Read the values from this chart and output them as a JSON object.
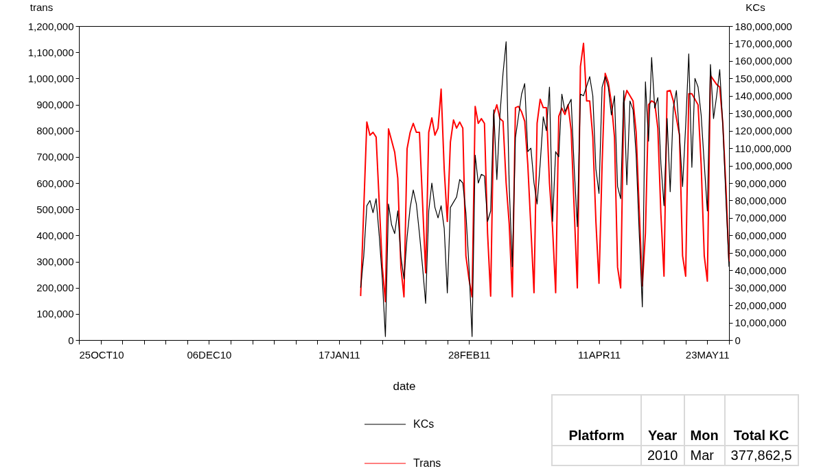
{
  "chart_data": {
    "type": "line",
    "xlabel": "date",
    "ylabel": "trans",
    "y2label": "KCs",
    "legend": "bottom",
    "line_style": "solid",
    "xlim": [
      "2010-10-25",
      "2011-05-23"
    ],
    "xticks": [
      {
        "value": "2010-10-25",
        "label": "25OCT10"
      },
      {
        "value": "2010-11-01",
        "label": null
      },
      {
        "value": "2010-11-08",
        "label": null
      },
      {
        "value": "2010-11-15",
        "label": null
      },
      {
        "value": "2010-11-22",
        "label": null
      },
      {
        "value": "2010-11-29",
        "label": null
      },
      {
        "value": "2010-12-06",
        "label": "06DEC10"
      },
      {
        "value": "2010-12-13",
        "label": null
      },
      {
        "value": "2010-12-20",
        "label": null
      },
      {
        "value": "2010-12-27",
        "label": null
      },
      {
        "value": "2011-01-03",
        "label": null
      },
      {
        "value": "2011-01-10",
        "label": null
      },
      {
        "value": "2011-01-17",
        "label": "17JAN11"
      },
      {
        "value": "2011-01-24",
        "label": null
      },
      {
        "value": "2011-01-31",
        "label": null
      },
      {
        "value": "2011-02-07",
        "label": null
      },
      {
        "value": "2011-02-14",
        "label": null
      },
      {
        "value": "2011-02-21",
        "label": null
      },
      {
        "value": "2011-02-28",
        "label": "28FEB11"
      },
      {
        "value": "2011-03-07",
        "label": null
      },
      {
        "value": "2011-03-14",
        "label": null
      },
      {
        "value": "2011-03-21",
        "label": null
      },
      {
        "value": "2011-03-28",
        "label": null
      },
      {
        "value": "2011-04-04",
        "label": null
      },
      {
        "value": "2011-04-11",
        "label": "11APR11"
      },
      {
        "value": "2011-04-18",
        "label": null
      },
      {
        "value": "2011-04-25",
        "label": null
      },
      {
        "value": "2011-05-02",
        "label": null
      },
      {
        "value": "2011-05-09",
        "label": null
      },
      {
        "value": "2011-05-16",
        "label": null
      },
      {
        "value": "2011-05-23",
        "label": "23MAY11"
      }
    ],
    "ylim": [
      0,
      1200000
    ],
    "yticks": [
      {
        "value": 0,
        "label": "0"
      },
      {
        "value": 100000,
        "label": "100,000"
      },
      {
        "value": 200000,
        "label": "200,000"
      },
      {
        "value": 300000,
        "label": "300,000"
      },
      {
        "value": 400000,
        "label": "400,000"
      },
      {
        "value": 500000,
        "label": "500,000"
      },
      {
        "value": 600000,
        "label": "600,000"
      },
      {
        "value": 700000,
        "label": "700,000"
      },
      {
        "value": 800000,
        "label": "800,000"
      },
      {
        "value": 900000,
        "label": "900,000"
      },
      {
        "value": 1000000,
        "label": "1,000,000"
      },
      {
        "value": 1100000,
        "label": "1,100,000"
      },
      {
        "value": 1200000,
        "label": "1,200,000"
      }
    ],
    "y2lim": [
      0,
      180000000
    ],
    "y2ticks": [
      {
        "value": 0,
        "label": "0"
      },
      {
        "value": 10000000,
        "label": "10,000,000"
      },
      {
        "value": 20000000,
        "label": "20,000,000"
      },
      {
        "value": 30000000,
        "label": "30,000,000"
      },
      {
        "value": 40000000,
        "label": "40,000,000"
      },
      {
        "value": 50000000,
        "label": "50,000,000"
      },
      {
        "value": 60000000,
        "label": "60,000,000"
      },
      {
        "value": 70000000,
        "label": "70,000,000"
      },
      {
        "value": 80000000,
        "label": "80,000,000"
      },
      {
        "value": 90000000,
        "label": "90,000,000"
      },
      {
        "value": 100000000,
        "label": "100,000,000"
      },
      {
        "value": 110000000,
        "label": "110,000,000"
      },
      {
        "value": 120000000,
        "label": "120,000,000"
      },
      {
        "value": 130000000,
        "label": "130,000,000"
      },
      {
        "value": 140000000,
        "label": "140,000,000"
      },
      {
        "value": 150000000,
        "label": "150,000,000"
      },
      {
        "value": 160000000,
        "label": "160,000,000"
      },
      {
        "value": 170000000,
        "label": "170,000,000"
      },
      {
        "value": 180000000,
        "label": "180,000,000"
      }
    ],
    "annotations": [
      "Platform",
      "Year",
      "Mon",
      "Total KC",
      "2010",
      "Mar",
      "377,862,5"
    ],
    "series": [
      {
        "name": "KCs",
        "color": "#000000",
        "axis": "y2",
        "x": [
          "2011-01-24",
          "2011-01-25",
          "2011-01-26",
          "2011-01-27",
          "2011-01-28",
          "2011-01-29",
          "2011-01-30",
          "2011-01-31",
          "2011-02-01",
          "2011-02-02",
          "2011-02-03",
          "2011-02-04",
          "2011-02-05",
          "2011-02-06",
          "2011-02-07",
          "2011-02-08",
          "2011-02-09",
          "2011-02-10",
          "2011-02-11",
          "2011-02-12",
          "2011-02-13",
          "2011-02-14",
          "2011-02-15",
          "2011-02-16",
          "2011-02-17",
          "2011-02-18",
          "2011-02-19",
          "2011-02-20",
          "2011-02-21",
          "2011-02-22",
          "2011-02-24",
          "2011-02-25",
          "2011-02-26",
          "2011-02-27",
          "2011-02-28",
          "2011-03-01",
          "2011-03-02",
          "2011-03-03",
          "2011-03-04",
          "2011-03-05",
          "2011-03-06",
          "2011-03-07",
          "2011-03-08",
          "2011-03-09",
          "2011-03-10",
          "2011-03-11",
          "2011-03-12",
          "2011-03-13",
          "2011-03-14",
          "2011-03-15",
          "2011-03-17",
          "2011-03-18",
          "2011-03-19",
          "2011-03-20",
          "2011-03-21",
          "2011-03-22",
          "2011-03-23",
          "2011-03-24",
          "2011-03-25",
          "2011-03-26",
          "2011-03-27",
          "2011-03-28",
          "2011-03-29",
          "2011-03-30",
          "2011-03-31",
          "2011-04-02",
          "2011-04-03",
          "2011-04-04",
          "2011-04-05",
          "2011-04-06",
          "2011-04-08",
          "2011-04-09",
          "2011-04-10",
          "2011-04-11",
          "2011-04-12",
          "2011-04-13",
          "2011-04-14",
          "2011-04-15",
          "2011-04-16",
          "2011-04-17",
          "2011-04-18",
          "2011-04-19",
          "2011-04-20",
          "2011-04-21",
          "2011-04-22",
          "2011-04-23",
          "2011-04-24",
          "2011-04-25",
          "2011-04-26",
          "2011-04-27",
          "2011-04-28",
          "2011-04-29",
          "2011-04-30",
          "2011-05-01",
          "2011-05-02",
          "2011-05-03",
          "2011-05-04",
          "2011-05-05",
          "2011-05-06",
          "2011-05-07",
          "2011-05-08",
          "2011-05-09",
          "2011-05-10",
          "2011-05-11",
          "2011-05-12",
          "2011-05-13",
          "2011-05-14",
          "2011-05-15",
          "2011-05-16",
          "2011-05-17",
          "2011-05-18",
          "2011-05-19",
          "2011-05-20",
          "2011-05-21",
          "2011-05-22",
          "2011-05-23"
        ],
        "values": [
          30000000,
          48000000,
          77000000,
          80000000,
          73000000,
          81000000,
          60000000,
          35000000,
          2000000,
          78000000,
          66000000,
          61000000,
          74000000,
          48000000,
          35000000,
          59000000,
          76000000,
          86000000,
          78000000,
          61000000,
          42000000,
          21000000,
          74000000,
          90000000,
          76000000,
          70000000,
          77000000,
          64000000,
          27000000,
          76000000,
          82000000,
          92000000,
          90000000,
          73000000,
          42000000,
          2000000,
          106000000,
          90000000,
          95000000,
          94000000,
          68000000,
          74000000,
          132000000,
          92000000,
          129000000,
          153000000,
          171000000,
          88000000,
          42000000,
          116000000,
          141000000,
          147000000,
          108000000,
          110000000,
          90000000,
          78000000,
          101000000,
          128000000,
          120000000,
          145000000,
          68000000,
          108000000,
          105000000,
          141000000,
          131000000,
          138000000,
          98000000,
          65000000,
          141000000,
          140000000,
          151000000,
          140000000,
          98000000,
          84000000,
          145000000,
          151000000,
          145000000,
          129000000,
          140000000,
          88000000,
          81000000,
          143000000,
          89000000,
          137000000,
          132000000,
          106000000,
          61000000,
          19000000,
          148000000,
          114000000,
          162000000,
          133000000,
          139000000,
          101000000,
          77000000,
          127000000,
          85000000,
          133000000,
          143000000,
          117000000,
          88000000,
          123000000,
          164000000,
          99000000,
          150000000,
          145000000,
          129000000,
          101000000,
          74000000,
          158000000,
          127000000,
          140000000,
          155000000,
          123000000,
          81000000,
          42000000
        ]
      },
      {
        "name": "Trans",
        "color": "#ff0000",
        "x": [
          "2011-01-24",
          "2011-01-26",
          "2011-01-27",
          "2011-01-28",
          "2011-01-29",
          "2011-01-31",
          "2011-02-01",
          "2011-02-02",
          "2011-02-04",
          "2011-02-05",
          "2011-02-06",
          "2011-02-07",
          "2011-02-08",
          "2011-02-09",
          "2011-02-10",
          "2011-02-11",
          "2011-02-12",
          "2011-02-14",
          "2011-02-15",
          "2011-02-16",
          "2011-02-17",
          "2011-02-18",
          "2011-02-19",
          "2011-02-20",
          "2011-02-21",
          "2011-02-22",
          "2011-02-23",
          "2011-02-24",
          "2011-02-25",
          "2011-02-26",
          "2011-02-27",
          "2011-02-28",
          "2011-03-01",
          "2011-03-02",
          "2011-03-03",
          "2011-03-04",
          "2011-03-05",
          "2011-03-06",
          "2011-03-07",
          "2011-03-08",
          "2011-03-09",
          "2011-03-10",
          "2011-03-11",
          "2011-03-12",
          "2011-03-13",
          "2011-03-14",
          "2011-03-15",
          "2011-03-16",
          "2011-03-17",
          "2011-03-18",
          "2011-03-19",
          "2011-03-20",
          "2011-03-21",
          "2011-03-22",
          "2011-03-23",
          "2011-03-24",
          "2011-03-25",
          "2011-03-26",
          "2011-03-27",
          "2011-03-28",
          "2011-03-29",
          "2011-03-30",
          "2011-03-31",
          "2011-04-01",
          "2011-04-02",
          "2011-04-03",
          "2011-04-04",
          "2011-04-05",
          "2011-04-06",
          "2011-04-07",
          "2011-04-08",
          "2011-04-09",
          "2011-04-10",
          "2011-04-11",
          "2011-04-12",
          "2011-04-13",
          "2011-04-14",
          "2011-04-15",
          "2011-04-16",
          "2011-04-17",
          "2011-04-18",
          "2011-04-19",
          "2011-04-20",
          "2011-04-22",
          "2011-04-23",
          "2011-04-24",
          "2011-04-25",
          "2011-04-26",
          "2011-04-27",
          "2011-04-28",
          "2011-04-29",
          "2011-04-30",
          "2011-05-01",
          "2011-05-02",
          "2011-05-03",
          "2011-05-04",
          "2011-05-05",
          "2011-05-07",
          "2011-05-08",
          "2011-05-09",
          "2011-05-10",
          "2011-05-11",
          "2011-05-13",
          "2011-05-14",
          "2011-05-15",
          "2011-05-16",
          "2011-05-17",
          "2011-05-19",
          "2011-05-20",
          "2011-05-21",
          "2011-05-22",
          "2011-05-23"
        ],
        "values": [
          168000,
          833000,
          783000,
          794000,
          776000,
          278000,
          147000,
          807000,
          718000,
          618000,
          278000,
          165000,
          731000,
          794000,
          828000,
          794000,
          794000,
          257000,
          794000,
          849000,
          783000,
          810000,
          959000,
          652000,
          453000,
          757000,
          841000,
          810000,
          833000,
          810000,
          322000,
          233000,
          165000,
          893000,
          828000,
          846000,
          828000,
          409000,
          168000,
          862000,
          899000,
          846000,
          836000,
          600000,
          443000,
          165000,
          888000,
          893000,
          872000,
          836000,
          671000,
          427000,
          181000,
          828000,
          920000,
          888000,
          888000,
          600000,
          427000,
          181000,
          855000,
          886000,
          862000,
          899000,
          802000,
          495000,
          199000,
          1045000,
          1134000,
          914000,
          914000,
          776000,
          453000,
          217000,
          671000,
          1019000,
          985000,
          907000,
          776000,
          278000,
          199000,
          907000,
          954000,
          914000,
          794000,
          495000,
          207000,
          409000,
          899000,
          914000,
          907000,
          810000,
          480000,
          244000,
          951000,
          954000,
          914000,
          783000,
          322000,
          244000,
          941000,
          941000,
          899000,
          671000,
          322000,
          225000,
          1011000,
          977000,
          967000,
          828000,
          584000,
          300000
        ]
      }
    ]
  }
}
